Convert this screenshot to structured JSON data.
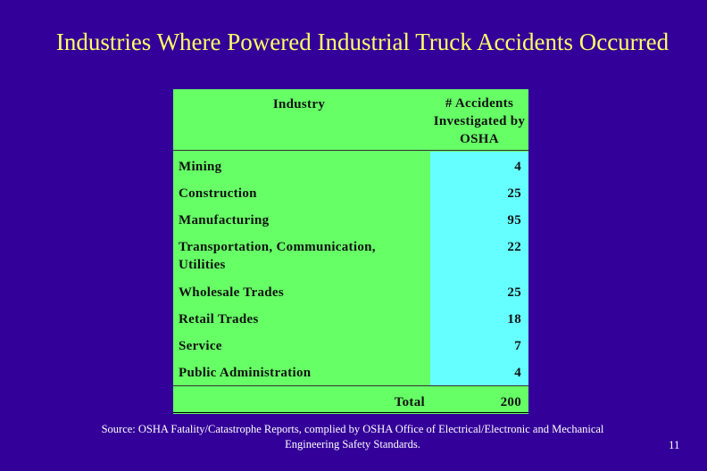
{
  "slide": {
    "title": "Industries Where Powered Industrial Truck Accidents Occurred",
    "source": "Source: OSHA Fatality/Catastrophe Reports, complied by OSHA Office of Electrical/Electronic and Mechanical Engineering Safety Standards.",
    "page_number": "11"
  },
  "table": {
    "header_industry": "Industry",
    "header_accidents": "# Accidents Investigated by OSHA",
    "rows": [
      {
        "industry": "Mining",
        "count": "4"
      },
      {
        "industry": "Construction",
        "count": "25"
      },
      {
        "industry": "Manufacturing",
        "count": "95"
      },
      {
        "industry": "Transportation, Communication, Utilities",
        "count": "22"
      },
      {
        "industry": "Wholesale Trades",
        "count": "25"
      },
      {
        "industry": "Retail Trades",
        "count": "18"
      },
      {
        "industry": "Service",
        "count": "7"
      },
      {
        "industry": "Public Administration",
        "count": "4"
      }
    ],
    "total_label": "Total",
    "total_value": "200"
  }
}
